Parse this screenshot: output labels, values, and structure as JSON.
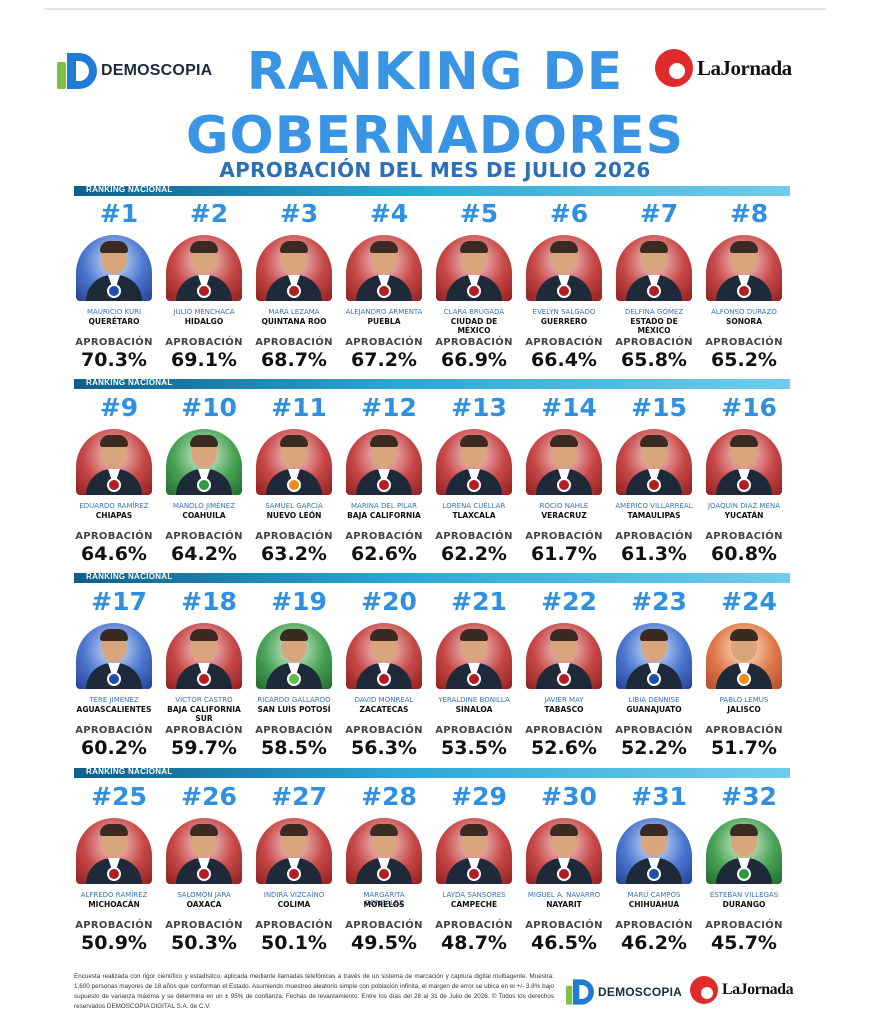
{
  "header": {
    "brand_left": "DEMOSCOPIA",
    "brand_right": "LaJornada",
    "title_line1": "RANKING DE",
    "title_line2": "GOBERNADORES",
    "subtitle": "APROBACIÓN DEL MES DE JULIO 2026"
  },
  "section_label": "RANKING NACIONAL",
  "approval_label": "APROBACIÓN",
  "governors": [
    {
      "rank": "#1",
      "name": "MAURICIO KURI",
      "state": "QUERÉTARO",
      "approval": "70.3%",
      "photo_bg": "blue",
      "party": "pan"
    },
    {
      "rank": "#2",
      "name": "JULIO MENCHACA",
      "state": "HIDALGO",
      "approval": "69.1%",
      "photo_bg": "red",
      "party": "morena"
    },
    {
      "rank": "#3",
      "name": "MARA LEZAMA",
      "state": "QUINTANA ROO",
      "approval": "68.7%",
      "photo_bg": "red",
      "party": "morena"
    },
    {
      "rank": "#4",
      "name": "ALEJANDRO ARMENTA",
      "state": "PUEBLA",
      "approval": "67.2%",
      "photo_bg": "red",
      "party": "morena"
    },
    {
      "rank": "#5",
      "name": "CLARA BRUGADA",
      "state": "CIUDAD DE MÉXICO",
      "approval": "66.9%",
      "photo_bg": "red",
      "party": "morena"
    },
    {
      "rank": "#6",
      "name": "EVELYN SALGADO",
      "state": "GUERRERO",
      "approval": "66.4%",
      "photo_bg": "red",
      "party": "morena"
    },
    {
      "rank": "#7",
      "name": "DELFINA GÓMEZ",
      "state": "ESTADO DE MÉXICO",
      "approval": "65.8%",
      "photo_bg": "red",
      "party": "morena"
    },
    {
      "rank": "#8",
      "name": "ALFONSO DURAZO",
      "state": "SONORA",
      "approval": "65.2%",
      "photo_bg": "red",
      "party": "morena"
    },
    {
      "rank": "#9",
      "name": "EDUARDO RAMÍREZ",
      "state": "CHIAPAS",
      "approval": "64.6%",
      "photo_bg": "red",
      "party": "morena"
    },
    {
      "rank": "#10",
      "name": "MANOLO JIMÉNEZ",
      "state": "COAHUILA",
      "approval": "64.2%",
      "photo_bg": "green",
      "party": "pri"
    },
    {
      "rank": "#11",
      "name": "SAMUEL GARCÍA",
      "state": "NUEVO LEÓN",
      "approval": "63.2%",
      "photo_bg": "red",
      "party": "mc"
    },
    {
      "rank": "#12",
      "name": "MARINA DEL PILAR",
      "state": "BAJA CALIFORNIA",
      "approval": "62.6%",
      "photo_bg": "red",
      "party": "morena"
    },
    {
      "rank": "#13",
      "name": "LORENA CUÉLLAR",
      "state": "TLAXCALA",
      "approval": "62.2%",
      "photo_bg": "red",
      "party": "morena"
    },
    {
      "rank": "#14",
      "name": "ROCÍO NAHLE",
      "state": "VERACRUZ",
      "approval": "61.7%",
      "photo_bg": "red",
      "party": "morena"
    },
    {
      "rank": "#15",
      "name": "AMÉRICO VILLARREAL",
      "state": "TAMAULIPAS",
      "approval": "61.3%",
      "photo_bg": "red",
      "party": "morena"
    },
    {
      "rank": "#16",
      "name": "JOAQUÍN DÍAZ MENA",
      "state": "YUCATÁN",
      "approval": "60.8%",
      "photo_bg": "red",
      "party": "morena"
    },
    {
      "rank": "#17",
      "name": "TERE JIMÉNEZ",
      "state": "AGUASCALIENTES",
      "approval": "60.2%",
      "photo_bg": "blue",
      "party": "pan"
    },
    {
      "rank": "#18",
      "name": "VÍCTOR CASTRO",
      "state": "BAJA CALIFORNIA SUR",
      "approval": "59.7%",
      "photo_bg": "red",
      "party": "morena"
    },
    {
      "rank": "#19",
      "name": "RICARDO GALLARDO",
      "state": "SAN LUIS POTOSÍ",
      "approval": "58.5%",
      "photo_bg": "green",
      "party": "pvem"
    },
    {
      "rank": "#20",
      "name": "DAVID MONREAL",
      "state": "ZACATECAS",
      "approval": "56.3%",
      "photo_bg": "red",
      "party": "morena"
    },
    {
      "rank": "#21",
      "name": "YERALDINE BONILLA",
      "state": "SINALOA",
      "approval": "53.5%",
      "photo_bg": "red",
      "party": "morena"
    },
    {
      "rank": "#22",
      "name": "JAVIER MAY",
      "state": "TABASCO",
      "approval": "52.6%",
      "photo_bg": "red",
      "party": "morena"
    },
    {
      "rank": "#23",
      "name": "LIBIA DENNISE",
      "state": "GUANAJUATO",
      "approval": "52.2%",
      "photo_bg": "blue",
      "party": "pan"
    },
    {
      "rank": "#24",
      "name": "PABLO LEMUS",
      "state": "JALISCO",
      "approval": "51.7%",
      "photo_bg": "orange",
      "party": "mc"
    },
    {
      "rank": "#25",
      "name": "ALFREDO RAMÍREZ",
      "state": "MICHOACÁN",
      "approval": "50.9%",
      "photo_bg": "red",
      "party": "morena"
    },
    {
      "rank": "#26",
      "name": "SALOMÓN JARA",
      "state": "OAXACA",
      "approval": "50.3%",
      "photo_bg": "red",
      "party": "morena"
    },
    {
      "rank": "#27",
      "name": "INDIRA VIZCAÍNO",
      "state": "COLIMA",
      "approval": "50.1%",
      "photo_bg": "red",
      "party": "morena"
    },
    {
      "rank": "#28",
      "name": "MARGARITA GONZÁLEZ",
      "state": "MORELOS",
      "approval": "49.5%",
      "photo_bg": "red",
      "party": "morena"
    },
    {
      "rank": "#29",
      "name": "LAYDA SANSORES",
      "state": "CAMPECHE",
      "approval": "48.7%",
      "photo_bg": "red",
      "party": "morena"
    },
    {
      "rank": "#30",
      "name": "MIGUEL A. NAVARRO",
      "state": "NAYARIT",
      "approval": "46.5%",
      "photo_bg": "red",
      "party": "morena"
    },
    {
      "rank": "#31",
      "name": "MARU CAMPOS",
      "state": "CHIHUAHUA",
      "approval": "46.2%",
      "photo_bg": "blue",
      "party": "pan"
    },
    {
      "rank": "#32",
      "name": "ESTEBAN VILLEGAS",
      "state": "DURANGO",
      "approval": "45.7%",
      "photo_bg": "green",
      "party": "pri"
    }
  ],
  "footer": {
    "methodology": "Encuesta realizada con rigor científico y estadístico, aplicada mediante llamadas telefónicas a través de un sistema de marcación y captura digital multiagente. Muestra: 1,600 personas mayores de 18 años que conforman el Estado. Asumiendo muestreo aleatorio simple con población infinita, el margen de error se ubica en el +/- 3.8% bajo supuesto de varianza máxima y se determina en un ± 95% de confianza. Fechas de levantamiento: Entre los días del 28 al 31 de Julio de 2026.",
    "rights": "© Todos los derechos reservados DEMOSCOPIA DIGITAL S.A. de C.V.",
    "brand_left": "DEMOSCOPIA",
    "brand_right": "LaJornada"
  }
}
